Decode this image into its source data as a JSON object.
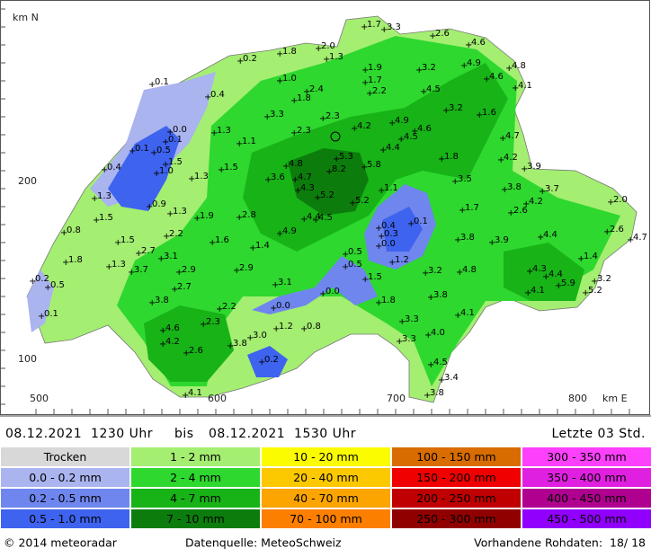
{
  "map": {
    "axis": {
      "north_label": "km N",
      "east_label": "km E",
      "y_labels": [
        "200",
        "100"
      ],
      "x_labels": [
        "500",
        "600",
        "700",
        "800"
      ]
    },
    "stations": [
      "1.7",
      "3.3",
      "2.6",
      "4.6",
      "2.0",
      "1.8",
      "0.2",
      "1.3",
      "4.8",
      "3.2",
      "1.9",
      "4.9",
      "4.6",
      "0.1",
      "1.0",
      "1.7",
      "4.1",
      "2.4",
      "2.2",
      "4.5",
      "0.4",
      "1.8",
      "3.2",
      "1.6",
      "3.3",
      "2.3",
      "4.9",
      "0.0",
      "1.3",
      "2.3",
      "4.2",
      "4.6",
      "0.1",
      "4.5",
      "4.7",
      "0.5",
      "0.1",
      "1.1",
      "4.4",
      "5.3",
      "1.5",
      "0.4",
      "4.8",
      "5.8",
      "1.8",
      "4.2",
      "8.2",
      "1.0",
      "1.5",
      "3.9",
      "3.6",
      "4.7",
      "1.3",
      "3.5",
      "4.3",
      "3.8",
      "3.7",
      "1.1",
      "5.2",
      "1.3",
      "4.2",
      "2.0",
      "5.2",
      "0.9",
      "1.7",
      "1.3",
      "1.9",
      "2.8",
      "2.6",
      "1.5",
      "4.4",
      "4.5",
      "0.1",
      "0.4",
      "0.8",
      "2.2",
      "4.9",
      "0.3",
      "2.6",
      "4.7",
      "0.0",
      "3.8",
      "3.9",
      "4.4",
      "1.5",
      "1.6",
      "1.4",
      "2.7",
      "0.5",
      "3.1",
      "1.8",
      "1.4",
      "1.3",
      "0.5",
      "2.9",
      "2.9",
      "1.2",
      "3.7",
      "4.8",
      "3.2",
      "4.3",
      "4.4",
      "3.2",
      "0.2",
      "1.5",
      "3.1",
      "5.9",
      "0.5",
      "2.7",
      "4.1",
      "5.2",
      "0.0",
      "3.8",
      "3.8",
      "1.8",
      "0.0",
      "2.2",
      "4.1",
      "0.1",
      "3.3",
      "2.3",
      "1.2",
      "0.8",
      "4.6",
      "4.0",
      "3.0",
      "3.3",
      "4.2",
      "3.8",
      "2.6",
      "0.2",
      "4.5",
      "3.4",
      "4.1",
      "3.8"
    ]
  },
  "period": {
    "from": "08.12.2021  1230 Uhr",
    "word": "bis",
    "to": "08.12.2021  1530 Uhr",
    "window": "Letzte 03 Std."
  },
  "legend": [
    [
      {
        "label": "Trocken",
        "color": "#d8d8d8"
      },
      {
        "label": "0.0 - 0.2 mm",
        "color": "#aab4ee"
      },
      {
        "label": "0.2 - 0.5 mm",
        "color": "#6f86ee"
      },
      {
        "label": "0.5 - 1.0 mm",
        "color": "#3e63ee"
      }
    ],
    [
      {
        "label": "1 - 2 mm",
        "color": "#a4ee72"
      },
      {
        "label": "2 - 4 mm",
        "color": "#2ed82e"
      },
      {
        "label": "4 - 7 mm",
        "color": "#17b317"
      },
      {
        "label": "7 - 10 mm",
        "color": "#0c7d0c"
      }
    ],
    [
      {
        "label": "10 - 20 mm",
        "color": "#fcfc00"
      },
      {
        "label": "20 - 40 mm",
        "color": "#fcc800"
      },
      {
        "label": "40 - 70 mm",
        "color": "#fca400"
      },
      {
        "label": "70 - 100 mm",
        "color": "#fc7f00"
      }
    ],
    [
      {
        "label": "100 - 150 mm",
        "color": "#d86c00"
      },
      {
        "label": "150 - 200 mm",
        "color": "#f00000"
      },
      {
        "label": "200 - 250 mm",
        "color": "#c00000"
      },
      {
        "label": "250 - 300 mm",
        "color": "#900000"
      }
    ],
    [
      {
        "label": "300 - 350 mm",
        "color": "#fc40fc"
      },
      {
        "label": "350 - 400 mm",
        "color": "#e020e0"
      },
      {
        "label": "400 - 450 mm",
        "color": "#b00090"
      },
      {
        "label": "450 - 500 mm",
        "color": "#9000fc"
      }
    ]
  ],
  "footer": {
    "copyright": "© 2014 meteoradar",
    "source": "Datenquelle: MeteoSchweiz",
    "raw": "Vorhandene Rohdaten:  18/ 18"
  }
}
